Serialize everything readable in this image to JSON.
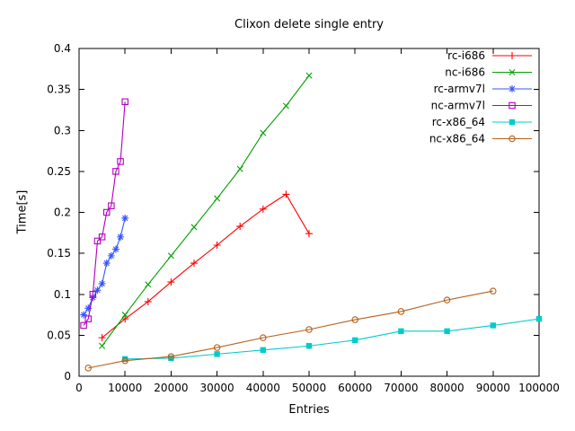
{
  "page": {
    "background": "#ffffff"
  },
  "chart_data": {
    "type": "line",
    "title": "Clixon delete single entry",
    "xlabel": "Entries",
    "ylabel": "Time[s]",
    "xlim": [
      0,
      100000
    ],
    "ylim": [
      0,
      0.4
    ],
    "x_ticks": [
      0,
      10000,
      20000,
      30000,
      40000,
      50000,
      60000,
      70000,
      80000,
      90000,
      100000
    ],
    "y_ticks": [
      0,
      0.05,
      0.1,
      0.15,
      0.2,
      0.25,
      0.3,
      0.35,
      0.4
    ],
    "grid": false,
    "legend_position": "top-right-inside",
    "axis_color": "#000000",
    "text_color": "#000000",
    "series": [
      {
        "name": "rc-i686",
        "color": "#ff0000",
        "marker": "plus",
        "x": [
          5000,
          10000,
          15000,
          20000,
          25000,
          30000,
          35000,
          40000,
          45000,
          50000
        ],
        "y": [
          0.047,
          0.07,
          0.091,
          0.115,
          0.138,
          0.16,
          0.183,
          0.204,
          0.222,
          0.174
        ]
      },
      {
        "name": "nc-i686",
        "color": "#00a000",
        "marker": "x",
        "x": [
          5000,
          10000,
          15000,
          20000,
          25000,
          30000,
          35000,
          40000,
          45000,
          50000
        ],
        "y": [
          0.037,
          0.075,
          0.112,
          0.147,
          0.182,
          0.217,
          0.253,
          0.297,
          0.33,
          0.367
        ]
      },
      {
        "name": "rc-armv7l",
        "color": "#3355ff",
        "marker": "asterisk",
        "x": [
          1000,
          2000,
          3000,
          4000,
          5000,
          6000,
          7000,
          8000,
          9000,
          10000
        ],
        "y": [
          0.075,
          0.083,
          0.096,
          0.105,
          0.113,
          0.138,
          0.147,
          0.155,
          0.17,
          0.193
        ]
      },
      {
        "name": "nc-armv7l",
        "color": "#b000c0",
        "marker": "open-square",
        "x": [
          1000,
          2000,
          3000,
          4000,
          5000,
          6000,
          7000,
          8000,
          9000,
          10000
        ],
        "y": [
          0.062,
          0.07,
          0.1,
          0.165,
          0.17,
          0.2,
          0.208,
          0.25,
          0.262,
          0.335
        ]
      },
      {
        "name": "rc-x86_64",
        "color": "#00cccc",
        "marker": "filled-square",
        "x": [
          10000,
          20000,
          30000,
          40000,
          50000,
          60000,
          70000,
          80000,
          90000,
          100000
        ],
        "y": [
          0.021,
          0.022,
          0.027,
          0.032,
          0.037,
          0.044,
          0.055,
          0.055,
          0.062,
          0.07
        ]
      },
      {
        "name": "nc-x86_64",
        "color": "#b5601a",
        "marker": "open-circle",
        "x": [
          2000,
          10000,
          20000,
          30000,
          40000,
          50000,
          60000,
          70000,
          80000,
          90000
        ],
        "y": [
          0.01,
          0.019,
          0.024,
          0.035,
          0.047,
          0.057,
          0.069,
          0.079,
          0.093,
          0.104
        ]
      }
    ]
  }
}
